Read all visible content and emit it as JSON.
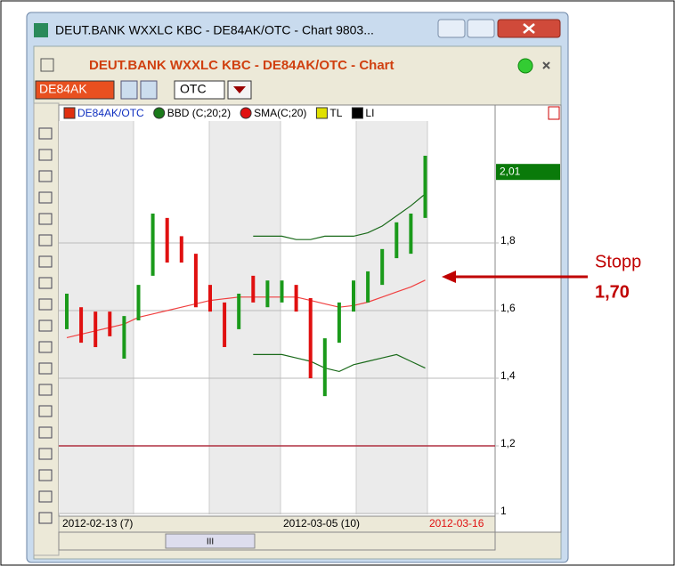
{
  "window": {
    "title": "DEUT.BANK WXXLC KBC - DE84AK/OTC - Chart 9803...",
    "header": "DEUT.BANK WXXLC KBC - DE84AK/OTC - Chart",
    "symbol": "DE84AK",
    "exchange": "OTC",
    "scroll_thumb": "III"
  },
  "chart_data": {
    "type": "ohlc",
    "legend": [
      "DE84AK/OTC",
      "BBD (C;20;2)",
      "SMA(C;20)",
      "TL",
      "LI"
    ],
    "legend_colors": [
      "#e03010",
      "#1a7a1a",
      "#e01010",
      "#e0e000",
      "#000000"
    ],
    "x_labels": [
      "2012-02-13 (7)",
      "2012-03-05 (10)",
      "2012-03-16"
    ],
    "high": [
      1.65,
      1.61,
      1.597,
      1.597,
      1.584,
      1.676,
      1.887,
      1.874,
      1.82,
      1.768,
      1.676,
      1.624,
      1.65,
      1.703,
      1.689,
      1.689,
      1.676,
      1.637,
      1.518,
      1.624,
      1.689,
      1.716,
      1.782,
      1.861,
      1.887,
      2.058
    ],
    "low": [
      1.545,
      1.505,
      1.492,
      1.524,
      1.458,
      1.571,
      1.703,
      1.742,
      1.742,
      1.61,
      1.597,
      1.492,
      1.545,
      1.624,
      1.61,
      1.624,
      1.597,
      1.4,
      1.347,
      1.505,
      1.597,
      1.624,
      1.676,
      1.755,
      1.768,
      1.874
    ],
    "bar_colors": [
      "#1a9a1a",
      "#e01010",
      "#e01010",
      "#e01010",
      "#1a9a1a",
      "#1a9a1a",
      "#1a9a1a",
      "#e01010",
      "#e01010",
      "#e01010",
      "#e01010",
      "#e01010",
      "#1a9a1a",
      "#e01010",
      "#1a9a1a",
      "#1a9a1a",
      "#e01010",
      "#e01010",
      "#1a9a1a",
      "#1a9a1a",
      "#1a9a1a",
      "#1a9a1a",
      "#1a9a1a",
      "#1a9a1a",
      "#1a9a1a",
      "#1a9a1a"
    ],
    "series": [
      {
        "name": "SMA(C;20)",
        "color": "#f04040",
        "values": [
          1.52,
          1.53,
          1.54,
          1.55,
          1.56,
          1.58,
          1.59,
          1.6,
          1.61,
          1.62,
          1.63,
          1.635,
          1.64,
          1.64,
          1.64,
          1.64,
          1.64,
          1.63,
          1.62,
          1.61,
          1.615,
          1.625,
          1.64,
          1.655,
          1.67,
          1.69
        ]
      },
      {
        "name": "BBD upper",
        "color": "#1a6a1a",
        "values": [
          null,
          null,
          null,
          null,
          null,
          null,
          null,
          null,
          null,
          null,
          null,
          null,
          null,
          1.82,
          1.82,
          1.82,
          1.81,
          1.81,
          1.82,
          1.82,
          1.82,
          1.83,
          1.85,
          1.88,
          1.91,
          1.945
        ]
      },
      {
        "name": "BBD lower",
        "color": "#1a6a1a",
        "values": [
          null,
          null,
          null,
          null,
          null,
          null,
          null,
          null,
          null,
          null,
          null,
          null,
          null,
          1.47,
          1.47,
          1.47,
          1.46,
          1.45,
          1.43,
          1.42,
          1.44,
          1.45,
          1.46,
          1.47,
          1.45,
          1.43
        ]
      }
    ],
    "hline": 1.2,
    "last_price_label": "2,01",
    "last_price": 2.01,
    "ylim": [
      1,
      2.15
    ],
    "yticks": [
      1,
      {
        "value": 1.2,
        "label": "1,2"
      },
      {
        "value": 1.4,
        "label": "1,4"
      },
      {
        "value": 1.6,
        "label": "1,6"
      },
      {
        "value": 1.8,
        "label": "1,8"
      }
    ],
    "annotation": {
      "lines": [
        "Stopp",
        "1,70"
      ],
      "value": 1.7,
      "color": "#c00000"
    }
  }
}
